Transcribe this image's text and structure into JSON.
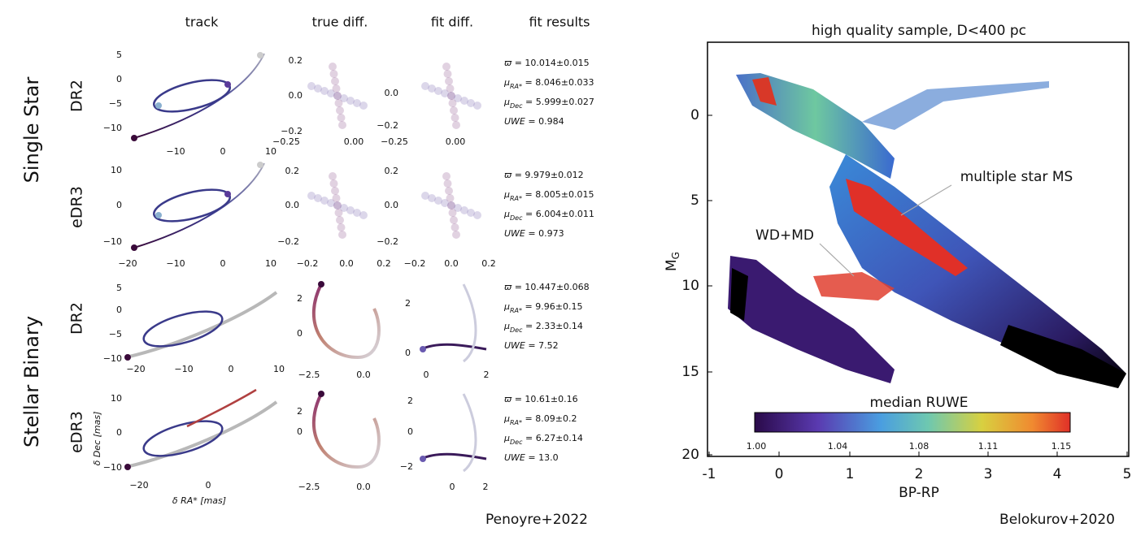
{
  "headers": [
    "track",
    "true diff.",
    "fit diff.",
    "fit results"
  ],
  "groups": [
    "Single Star",
    "Stellar Binary"
  ],
  "rows": [
    {
      "label": "DR2",
      "track": {
        "yticks": [
          "5",
          "0",
          "−5",
          "−10"
        ],
        "xticks": [
          "−10",
          "0",
          "10"
        ]
      },
      "true_diff": {
        "yticks": [
          "0.2",
          "0.0",
          "−0.2"
        ],
        "xticks": [
          "−0.25",
          "0.00"
        ]
      },
      "fit_diff": {
        "yticks": [
          "0.0",
          "−0.2"
        ],
        "xticks": [
          "−0.25",
          "0.00"
        ]
      },
      "results": [
        {
          "sym": "ϖ",
          "sub": "",
          "value": " = 10.014±0.015"
        },
        {
          "sym": "μ",
          "sub": "RA*",
          "value": " = 8.046±0.033"
        },
        {
          "sym": "μ",
          "sub": "Dec",
          "value": " = 5.999±0.027"
        },
        {
          "sym": "UWE",
          "sub": "",
          "value": " = 0.984"
        }
      ]
    },
    {
      "label": "eDR3",
      "track": {
        "yticks": [
          "10",
          "0",
          "−10"
        ],
        "xticks": [
          "−20",
          "−10",
          "0",
          "10"
        ]
      },
      "true_diff": {
        "yticks": [
          "0.2",
          "0.0",
          "−0.2"
        ],
        "xticks": [
          "−0.2",
          "0.0",
          "0.2"
        ]
      },
      "fit_diff": {
        "yticks": [
          "0.2",
          "0.0",
          "−0.2"
        ],
        "xticks": [
          "−0.2",
          "0.0",
          "0.2"
        ]
      },
      "results": [
        {
          "sym": "ϖ",
          "sub": "",
          "value": " = 9.979±0.012"
        },
        {
          "sym": "μ",
          "sub": "RA*",
          "value": " = 8.005±0.015"
        },
        {
          "sym": "μ",
          "sub": "Dec",
          "value": " = 6.004±0.011"
        },
        {
          "sym": "UWE",
          "sub": "",
          "value": " = 0.973"
        }
      ]
    },
    {
      "label": "DR2",
      "track": {
        "yticks": [
          "5",
          "0",
          "−5",
          "−10"
        ],
        "xticks": [
          "−20",
          "−10",
          "0",
          "10"
        ]
      },
      "true_diff": {
        "yticks": [
          "2",
          "0"
        ],
        "xticks": [
          "−2.5",
          "0.0"
        ]
      },
      "fit_diff": {
        "yticks": [
          "2",
          "0"
        ],
        "xticks": [
          "0",
          "2"
        ]
      },
      "results": [
        {
          "sym": "ϖ",
          "sub": "",
          "value": " = 10.447±0.068"
        },
        {
          "sym": "μ",
          "sub": "RA*",
          "value": " = 9.96±0.15"
        },
        {
          "sym": "μ",
          "sub": "Dec",
          "value": " = 2.33±0.14"
        },
        {
          "sym": "UWE",
          "sub": "",
          "value": " = 7.52"
        }
      ]
    },
    {
      "label": "eDR3",
      "track": {
        "yticks": [
          "10",
          "0",
          "−10"
        ],
        "xticks": [
          "−20",
          "0"
        ]
      },
      "true_diff": {
        "yticks": [
          "2",
          "0"
        ],
        "xticks": [
          "−2.5",
          "0.0"
        ]
      },
      "fit_diff": {
        "yticks": [
          "2",
          "0",
          "−2"
        ],
        "xticks": [
          "0",
          "2"
        ]
      },
      "results": [
        {
          "sym": "ϖ",
          "sub": "",
          "value": " = 10.61±0.16"
        },
        {
          "sym": "μ",
          "sub": "RA*",
          "value": " = 8.09±0.2"
        },
        {
          "sym": "μ",
          "sub": "Dec",
          "value": " = 6.27±0.14"
        },
        {
          "sym": "UWE",
          "sub": "",
          "value": " = 13.0"
        }
      ]
    }
  ],
  "track_ylabel": "δ Dec  [mas]",
  "track_xlabel": "δ RA*  [mas]",
  "left_credit": "Penoyre+2022",
  "cmd": {
    "title": "high quality sample, D<400 pc",
    "xlabel": "BP-RP",
    "ylabel": "M",
    "ylabel_sub": "G",
    "xticks": [
      "-1",
      "0",
      "1",
      "2",
      "3",
      "4",
      "5"
    ],
    "yticks": [
      "0",
      "5",
      "10",
      "15",
      "20"
    ],
    "annotations": [
      "multiple star MS",
      "WD+MD"
    ],
    "colorbar": {
      "label": "median RUWE",
      "ticks": [
        "1.00",
        "1.04",
        "1.08",
        "1.11",
        "1.15"
      ]
    }
  },
  "right_credit": "Belokurov+2020"
}
